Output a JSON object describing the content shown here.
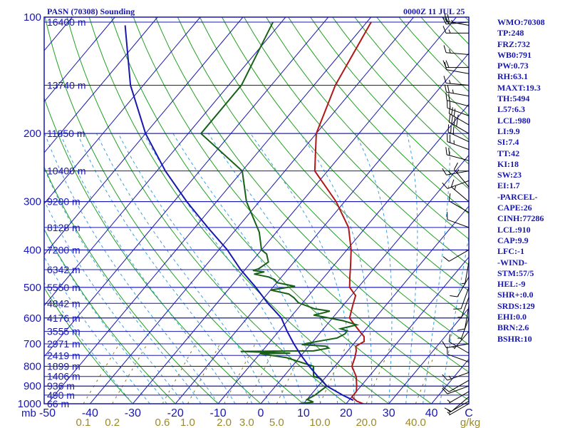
{
  "header": {
    "station": "PASN (70308) Sounding",
    "time": "0000Z 11 JUL 25"
  },
  "colors": {
    "frame": "#1818b0",
    "isotherm": "#1818b0",
    "dry_adiabat": "#22a022",
    "moist_adiabat": "#3aa0e0",
    "mixing_ratio": "#8a7a20",
    "temperature": "#b01818",
    "dewpoint": "#186018",
    "parcel": "#1818b0",
    "wind_barb": "#000000"
  },
  "indices": [
    "WMO:70308",
    "TP:248",
    "FRZ:732",
    "WB0:791",
    "PW:0.73",
    "RH:63.1",
    "MAXT:19.3",
    "TH:5494",
    "L57:6.3",
    "LCL:980",
    "LI:9.9",
    "SI:7.4",
    "TT:42",
    "KI:18",
    "SW:23",
    "EI:1.7",
    "-PARCEL-",
    "CAPE:26",
    "CINH:77286",
    "LCL:910",
    "CAP:9.9",
    "LFC:-1",
    "-WIND-",
    "STM:57/5",
    "HEL:-9",
    "SHR+:0.0",
    "SRDS:129",
    "EHI:0.0",
    "BRN:2.6",
    "BSHR:10"
  ],
  "chart_data": {
    "type": "skew-t",
    "xlabel_left": "mb",
    "xlabel_right": "C",
    "mixing_ratio_unit": "g/kg",
    "pressure_ticks": [
      "100",
      "200",
      "300",
      "400",
      "500",
      "600",
      "700",
      "800",
      "900",
      "1000"
    ],
    "pressure_ticks_values": [
      100,
      200,
      300,
      400,
      500,
      600,
      700,
      800,
      900,
      1000
    ],
    "temperature_ticks": [
      "-50",
      "-40",
      "-30",
      "-20",
      "-10",
      "0",
      "10",
      "20",
      "30",
      "40"
    ],
    "temperature_ticks_values": [
      -50,
      -40,
      -30,
      -20,
      -10,
      0,
      10,
      20,
      30,
      40
    ],
    "isotherm_range": [
      -120,
      40
    ],
    "mixing_ratio_labels": [
      "0.1",
      "0.2",
      "0.6",
      "1.0",
      "2.0",
      "3.0",
      "5.0",
      "10.0",
      "20.0",
      "40.0"
    ],
    "mixing_ratio_values": [
      0.1,
      0.2,
      0.6,
      1.0,
      2.0,
      3.0,
      5.0,
      10.0,
      20.0,
      40.0
    ],
    "height_labels": [
      {
        "p": 103,
        "label": "16400 m"
      },
      {
        "p": 150,
        "label": "13740 m"
      },
      {
        "p": 200,
        "label": "11850 m"
      },
      {
        "p": 250,
        "label": "10400 m"
      },
      {
        "p": 300,
        "label": "9200 m"
      },
      {
        "p": 350,
        "label": "8128 m"
      },
      {
        "p": 400,
        "label": "7200 m"
      },
      {
        "p": 450,
        "label": "6342 m"
      },
      {
        "p": 500,
        "label": "5550 m"
      },
      {
        "p": 550,
        "label": "4842 m"
      },
      {
        "p": 600,
        "label": "4176 m"
      },
      {
        "p": 650,
        "label": "3555 m"
      },
      {
        "p": 700,
        "label": "2971 m"
      },
      {
        "p": 750,
        "label": "2419 m"
      },
      {
        "p": 800,
        "label": "1899 m"
      },
      {
        "p": 850,
        "label": "1406 m"
      },
      {
        "p": 900,
        "label": "936 m"
      },
      {
        "p": 950,
        "label": "490 m"
      },
      {
        "p": 1000,
        "label": "66 m"
      }
    ],
    "series": [
      {
        "key": "temperature",
        "points": [
          [
            1000,
            24
          ],
          [
            985,
            22
          ],
          [
            960,
            20
          ],
          [
            930,
            20
          ],
          [
            900,
            19
          ],
          [
            850,
            17
          ],
          [
            800,
            14
          ],
          [
            760,
            13
          ],
          [
            730,
            12
          ],
          [
            710,
            11
          ],
          [
            690,
            12
          ],
          [
            670,
            11
          ],
          [
            650,
            9
          ],
          [
            620,
            6
          ],
          [
            600,
            4
          ],
          [
            575,
            3
          ],
          [
            550,
            2
          ],
          [
            525,
            1
          ],
          [
            500,
            -2
          ],
          [
            470,
            -4
          ],
          [
            440,
            -6
          ],
          [
            400,
            -9
          ],
          [
            350,
            -14
          ],
          [
            300,
            -22
          ],
          [
            250,
            -33
          ],
          [
            200,
            -40
          ],
          [
            150,
            -45
          ],
          [
            103,
            -49
          ]
        ]
      },
      {
        "key": "dewpoint",
        "points": [
          [
            1000,
            9
          ],
          [
            990,
            12
          ],
          [
            975,
            10
          ],
          [
            950,
            11
          ],
          [
            900,
            12
          ],
          [
            860,
            9
          ],
          [
            850,
            7
          ],
          [
            800,
            5
          ],
          [
            760,
            -3
          ],
          [
            742,
            -10
          ],
          [
            740,
            -3
          ],
          [
            732,
            -15
          ],
          [
            730,
            2
          ],
          [
            726,
            3
          ],
          [
            718,
            5
          ],
          [
            710,
            4
          ],
          [
            703,
            -2
          ],
          [
            698,
            -1
          ],
          [
            690,
            1
          ],
          [
            676,
            5
          ],
          [
            660,
            6
          ],
          [
            648,
            6
          ],
          [
            640,
            4
          ],
          [
            625,
            7
          ],
          [
            610,
            3
          ],
          [
            597,
            -2
          ],
          [
            590,
            -5
          ],
          [
            581,
            -3
          ],
          [
            576,
            -2
          ],
          [
            568,
            -6
          ],
          [
            560,
            -8
          ],
          [
            548,
            -11
          ],
          [
            532,
            -13
          ],
          [
            520,
            -15
          ],
          [
            508,
            -20
          ],
          [
            497,
            -15
          ],
          [
            486,
            -20
          ],
          [
            478,
            -21
          ],
          [
            470,
            -23
          ],
          [
            462,
            -27
          ],
          [
            456,
            -25
          ],
          [
            452,
            -28
          ],
          [
            448,
            -27
          ],
          [
            430,
            -26
          ],
          [
            410,
            -28
          ],
          [
            400,
            -30
          ],
          [
            360,
            -34
          ],
          [
            300,
            -43
          ],
          [
            250,
            -50
          ],
          [
            200,
            -67
          ],
          [
            150,
            -67
          ],
          [
            103,
            -72
          ]
        ]
      },
      {
        "key": "parcel",
        "points": [
          [
            980,
            21
          ],
          [
            950,
            17.5
          ],
          [
            900,
            12
          ],
          [
            850,
            8
          ],
          [
            800,
            4
          ],
          [
            750,
            0
          ],
          [
            700,
            -4
          ],
          [
            650,
            -8
          ],
          [
            600,
            -12
          ],
          [
            550,
            -18
          ],
          [
            500,
            -24
          ],
          [
            450,
            -31
          ],
          [
            400,
            -38
          ],
          [
            350,
            -47
          ],
          [
            300,
            -57
          ],
          [
            250,
            -68
          ],
          [
            200,
            -80
          ],
          [
            150,
            -93
          ],
          [
            105,
            -106
          ]
        ]
      }
    ],
    "winds": [
      {
        "p": 103,
        "dir": 265,
        "spd": 25
      },
      {
        "p": 105,
        "dir": 280,
        "spd": 20
      },
      {
        "p": 110,
        "dir": 270,
        "spd": 15
      },
      {
        "p": 125,
        "dir": 275,
        "spd": 15
      },
      {
        "p": 135,
        "dir": 270,
        "spd": 20
      },
      {
        "p": 140,
        "dir": 280,
        "spd": 10
      },
      {
        "p": 150,
        "dir": 275,
        "spd": 15
      },
      {
        "p": 160,
        "dir": 280,
        "spd": 25
      },
      {
        "p": 170,
        "dir": 285,
        "spd": 20
      },
      {
        "p": 180,
        "dir": 290,
        "spd": 20
      },
      {
        "p": 190,
        "dir": 300,
        "spd": 35
      },
      {
        "p": 200,
        "dir": 300,
        "spd": 40
      },
      {
        "p": 210,
        "dir": 295,
        "spd": 30
      },
      {
        "p": 220,
        "dir": 290,
        "spd": 25
      },
      {
        "p": 235,
        "dir": 285,
        "spd": 20
      },
      {
        "p": 250,
        "dir": 260,
        "spd": 15
      },
      {
        "p": 265,
        "dir": 250,
        "spd": 10
      },
      {
        "p": 275,
        "dir": 320,
        "spd": 15
      },
      {
        "p": 300,
        "dir": 310,
        "spd": 15
      },
      {
        "p": 320,
        "dir": 300,
        "spd": 10
      },
      {
        "p": 350,
        "dir": 290,
        "spd": 10
      },
      {
        "p": 400,
        "dir": 240,
        "spd": 10
      },
      {
        "p": 430,
        "dir": 190,
        "spd": 5
      },
      {
        "p": 470,
        "dir": 210,
        "spd": 10
      },
      {
        "p": 500,
        "dir": 200,
        "spd": 10
      },
      {
        "p": 530,
        "dir": 200,
        "spd": 5
      },
      {
        "p": 560,
        "dir": 190,
        "spd": 10
      },
      {
        "p": 600,
        "dir": 200,
        "spd": 5
      },
      {
        "p": 650,
        "dir": 220,
        "spd": 5
      },
      {
        "p": 700,
        "dir": 260,
        "spd": 10
      },
      {
        "p": 740,
        "dir": 300,
        "spd": 10
      },
      {
        "p": 780,
        "dir": 290,
        "spd": 10
      },
      {
        "p": 830,
        "dir": 250,
        "spd": 15
      },
      {
        "p": 870,
        "dir": 240,
        "spd": 10
      },
      {
        "p": 900,
        "dir": 250,
        "spd": 10
      },
      {
        "p": 930,
        "dir": 240,
        "spd": 5
      },
      {
        "p": 960,
        "dir": 230,
        "spd": 10
      },
      {
        "p": 985,
        "dir": 240,
        "spd": 5
      },
      {
        "p": 1000,
        "dir": 240,
        "spd": 5
      }
    ]
  }
}
